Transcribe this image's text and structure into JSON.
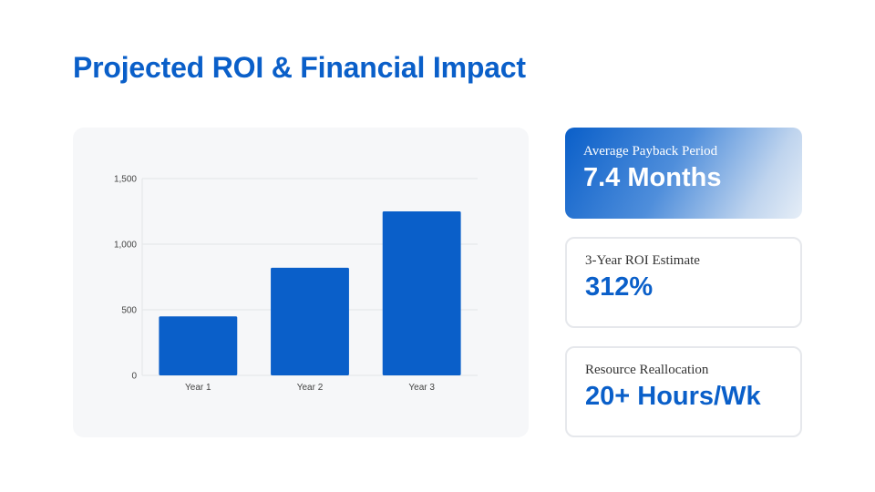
{
  "title": "Projected ROI & Financial Impact",
  "colors": {
    "accent": "#0A5FC9",
    "grid": "#E3E5E8",
    "card_bg": "#F6F7F9"
  },
  "chart_data": {
    "type": "bar",
    "categories": [
      "Year 1",
      "Year 2",
      "Year 3"
    ],
    "values": [
      450,
      820,
      1250
    ],
    "title": "",
    "xlabel": "",
    "ylabel": "",
    "ylim": [
      0,
      1500
    ],
    "yticks": [
      0,
      500,
      1000,
      1500
    ],
    "ytick_labels": [
      "0",
      "500",
      "1,000",
      "1,500"
    ],
    "grid": true,
    "bar_color": "#0A5FC9"
  },
  "metrics": [
    {
      "label": "Average Payback Period",
      "value": "7.4 Months"
    },
    {
      "label": "3-Year ROI Estimate",
      "value": "312%"
    },
    {
      "label": "Resource Reallocation",
      "value": "20+ Hours/Wk"
    }
  ]
}
